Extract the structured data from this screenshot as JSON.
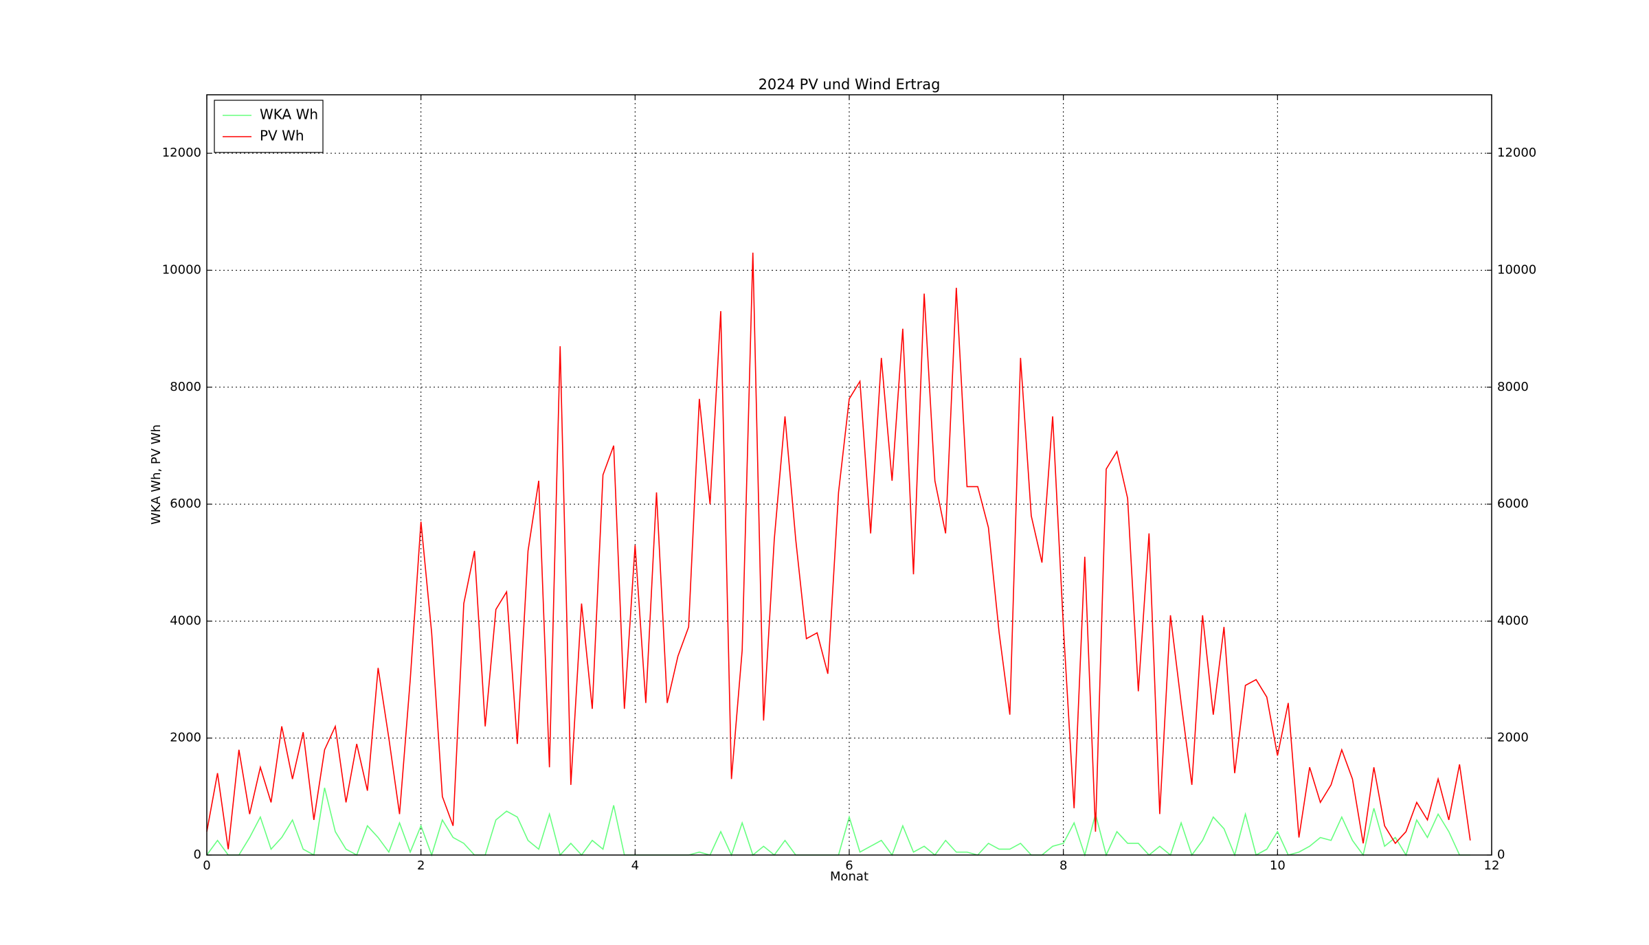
{
  "chart_data": {
    "type": "line",
    "title": "2024 PV und Wind Ertrag",
    "x_label": "Monat",
    "y_label": "WKA Wh, PV Wh",
    "x": [
      0,
      0.1,
      0.2,
      0.3,
      0.4,
      0.5,
      0.6,
      0.7,
      0.8,
      0.9,
      1,
      1.1,
      1.2,
      1.3,
      1.4,
      1.5,
      1.6,
      1.7,
      1.8,
      1.9,
      2,
      2.1,
      2.2,
      2.3,
      2.4,
      2.5,
      2.6,
      2.7,
      2.8,
      2.9,
      3,
      3.1,
      3.2,
      3.3,
      3.4,
      3.5,
      3.6,
      3.7,
      3.8,
      3.9,
      4,
      4.1,
      4.2,
      4.3,
      4.4,
      4.5,
      4.6,
      4.7,
      4.8,
      4.9,
      5,
      5.1,
      5.2,
      5.3,
      5.4,
      5.5,
      5.6,
      5.7,
      5.8,
      5.9,
      6,
      6.1,
      6.2,
      6.3,
      6.4,
      6.5,
      6.6,
      6.7,
      6.8,
      6.9,
      7,
      7.1,
      7.2,
      7.3,
      7.4,
      7.5,
      7.6,
      7.7,
      7.8,
      7.9,
      8,
      8.1,
      8.2,
      8.3,
      8.4,
      8.5,
      8.6,
      8.7,
      8.8,
      8.9,
      9,
      9.1,
      9.2,
      9.3,
      9.4,
      9.5,
      9.6,
      9.7,
      9.8,
      9.9,
      10,
      10.1,
      10.2,
      10.3,
      10.4,
      10.5,
      10.6,
      10.7,
      10.8,
      10.9,
      11,
      11.1,
      11.2,
      11.3,
      11.4,
      11.5,
      11.6,
      11.7,
      11.8
    ],
    "series": [
      {
        "name": "WKA Wh",
        "color": "#66ff7f",
        "values": [
          0,
          250,
          0,
          0,
          300,
          650,
          100,
          300,
          600,
          100,
          0,
          1150,
          400,
          100,
          0,
          500,
          300,
          50,
          550,
          50,
          500,
          0,
          600,
          300,
          200,
          0,
          0,
          600,
          750,
          650,
          250,
          100,
          700,
          0,
          200,
          0,
          250,
          100,
          850,
          0,
          0,
          0,
          0,
          0,
          0,
          0,
          50,
          0,
          400,
          0,
          550,
          0,
          150,
          0,
          250,
          0,
          0,
          0,
          0,
          0,
          650,
          50,
          150,
          250,
          0,
          500,
          50,
          150,
          0,
          250,
          50,
          50,
          0,
          200,
          100,
          100,
          200,
          0,
          0,
          150,
          200,
          550,
          0,
          700,
          0,
          400,
          200,
          200,
          0,
          150,
          0,
          550,
          0,
          250,
          650,
          450,
          0,
          700,
          0,
          100,
          400,
          0,
          50,
          150,
          300,
          250,
          650,
          250,
          0,
          800,
          150,
          300,
          0,
          600,
          300,
          700,
          400,
          0,
          0
        ]
      },
      {
        "name": "PV Wh",
        "color": "#ff0000",
        "values": [
          400,
          1400,
          100,
          1800,
          700,
          1500,
          900,
          2200,
          1300,
          2100,
          600,
          1800,
          2200,
          900,
          1900,
          1100,
          3200,
          2000,
          700,
          3000,
          5700,
          3800,
          1000,
          500,
          4300,
          5200,
          2200,
          4200,
          4500,
          1900,
          5200,
          6400,
          1500,
          8700,
          1200,
          4300,
          2500,
          6500,
          7000,
          2500,
          5300,
          2600,
          6200,
          2600,
          3400,
          3900,
          7800,
          6000,
          9300,
          1300,
          3500,
          10300,
          2300,
          5400,
          7500,
          5400,
          3700,
          3800,
          3100,
          6200,
          7800,
          8100,
          5500,
          8500,
          6400,
          9000,
          4800,
          9600,
          6400,
          5500,
          9700,
          6300,
          6300,
          5600,
          3800,
          2400,
          8500,
          5800,
          5000,
          7500,
          3900,
          800,
          5100,
          400,
          6600,
          6900,
          6100,
          2800,
          5500,
          700,
          4100,
          2600,
          1200,
          4100,
          2400,
          3900,
          1400,
          2900,
          3000,
          2700,
          1700,
          2600,
          300,
          1500,
          900,
          1200,
          1800,
          1300,
          200,
          1500,
          500,
          200,
          400,
          900,
          600,
          1300,
          600,
          1550,
          250
        ]
      }
    ],
    "xlim": [
      0,
      12
    ],
    "xticks": [
      0,
      2,
      4,
      6,
      8,
      10,
      12
    ],
    "ylim": [
      0,
      13000
    ],
    "yticks": [
      0,
      2000,
      4000,
      6000,
      8000,
      10000,
      12000
    ],
    "grid": true,
    "legend": "upper left"
  }
}
